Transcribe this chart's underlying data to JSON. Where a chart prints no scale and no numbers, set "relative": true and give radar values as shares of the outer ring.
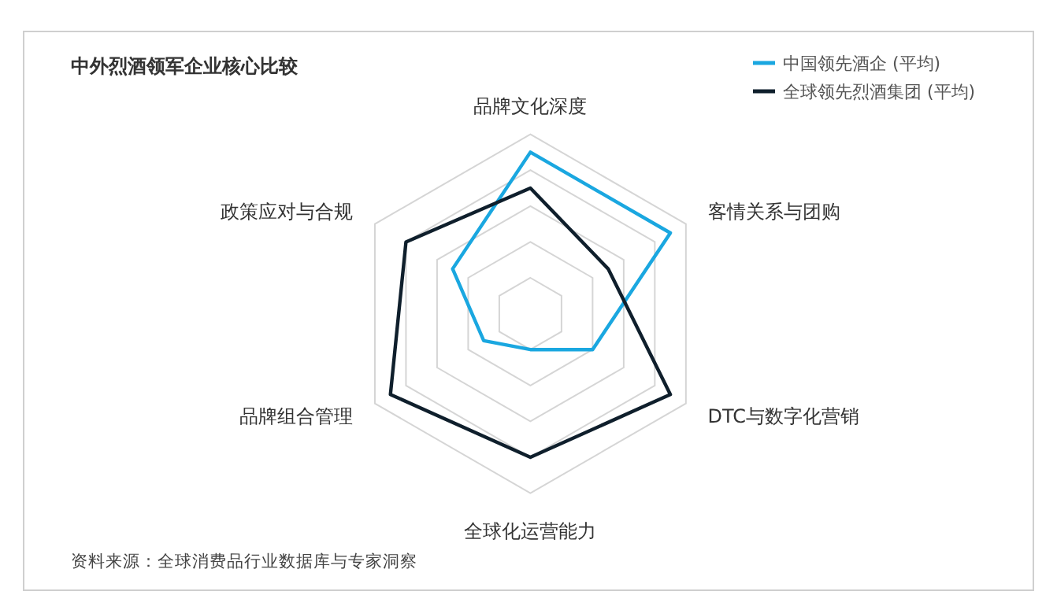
{
  "chart_data": {
    "type": "radar",
    "title": "中外烈酒领军企业核心比较",
    "categories": [
      "品牌文化深度",
      "客情关系与团购",
      "DTC与数字化营销",
      "全球化运营能力",
      "品牌组合管理",
      "政策应对与合规"
    ],
    "relative": true,
    "grid": true,
    "legend": "top right",
    "series": [
      {
        "name": "中国领先酒企 (平均)",
        "color": "#1aa7e0",
        "values": [
          0.9,
          0.9,
          0.4,
          0.2,
          0.3,
          0.5
        ]
      },
      {
        "name": "全球领先烈酒集团 (平均)",
        "color": "#0f1f2c",
        "values": [
          0.7,
          0.5,
          0.9,
          0.8,
          0.9,
          0.8
        ]
      }
    ],
    "annotations": [
      "资料来源：全球消费品行业数据库与专家洞察"
    ]
  }
}
